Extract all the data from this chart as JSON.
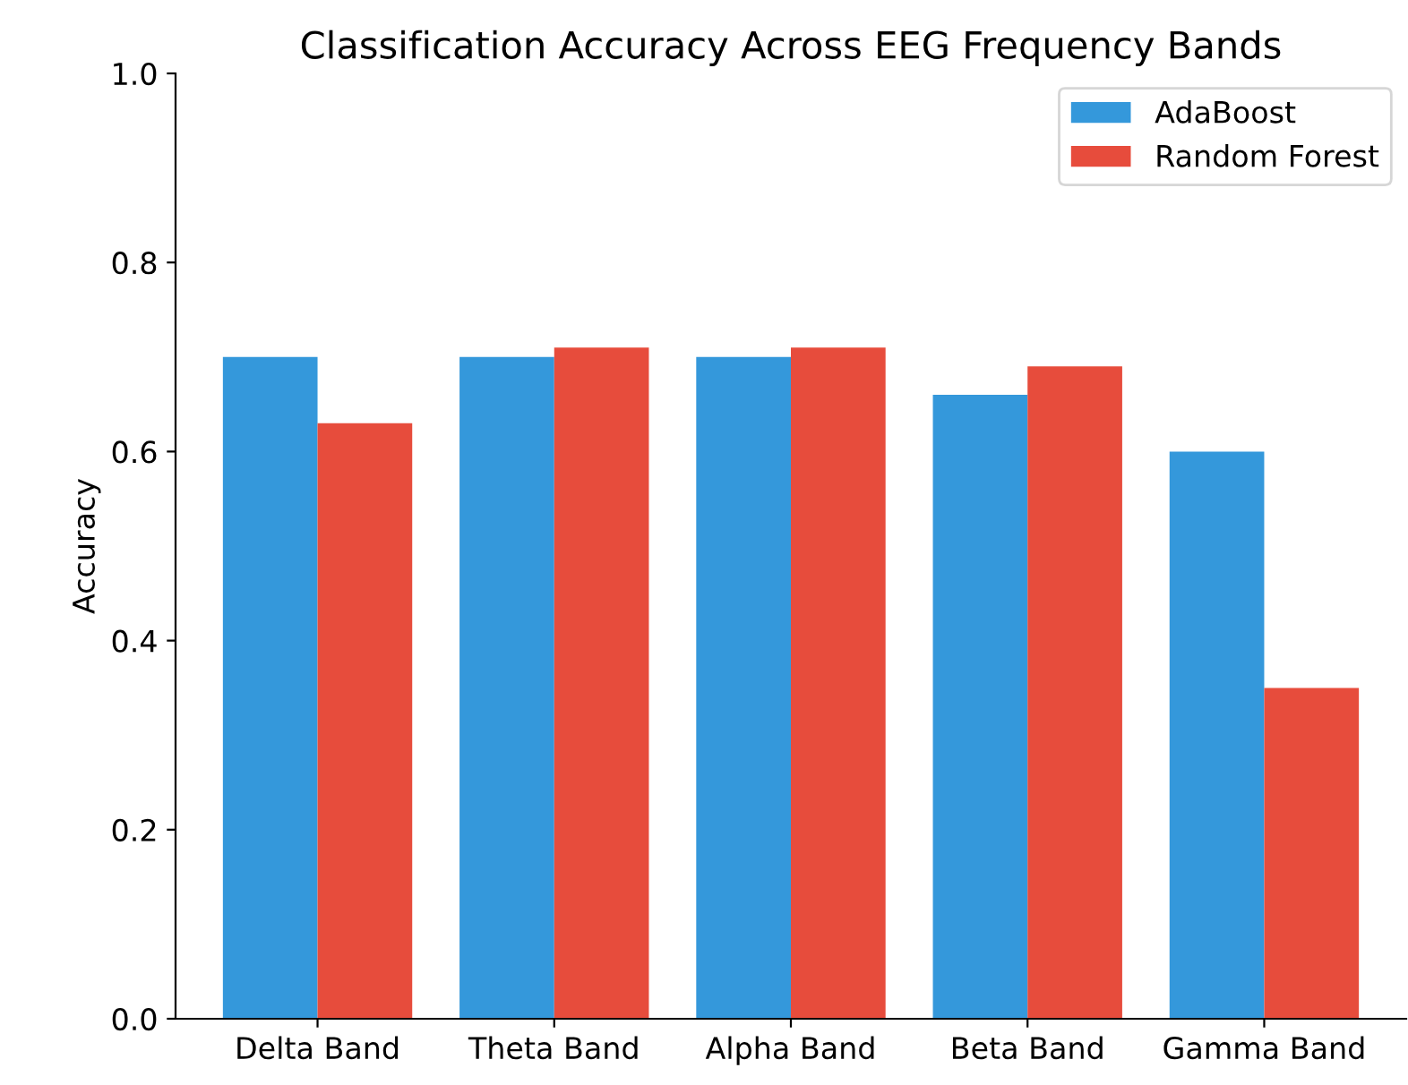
{
  "chart_data": {
    "type": "bar",
    "title": "Classification Accuracy Across EEG Frequency Bands",
    "ylabel": "Accuracy",
    "categories": [
      "Delta Band",
      "Theta Band",
      "Alpha Band",
      "Beta Band",
      "Gamma Band"
    ],
    "series": [
      {
        "name": "AdaBoost",
        "color": "#3498db",
        "values": [
          0.7,
          0.7,
          0.7,
          0.66,
          0.6
        ]
      },
      {
        "name": "Random Forest",
        "color": "#e74c3c",
        "values": [
          0.63,
          0.71,
          0.71,
          0.69,
          0.35
        ]
      }
    ],
    "ylim": [
      0,
      1.0
    ],
    "yticks": [
      {
        "value": 0,
        "label": "0.0"
      },
      {
        "value": 0.2,
        "label": "0.2"
      },
      {
        "value": 0.4,
        "label": "0.4"
      },
      {
        "value": 0.6,
        "label": "0.6"
      },
      {
        "value": 0.8,
        "label": "0.8"
      },
      {
        "value": 1.0,
        "label": "1.0"
      }
    ],
    "grid": false,
    "legend": "top right"
  }
}
